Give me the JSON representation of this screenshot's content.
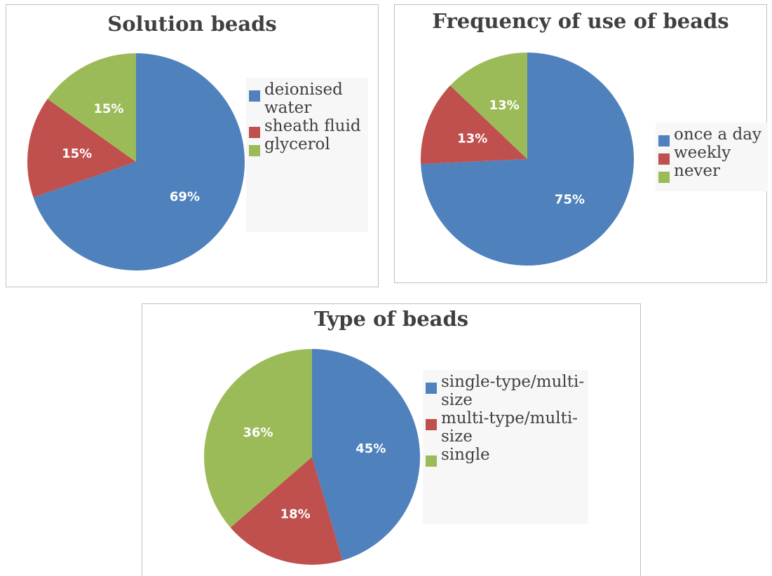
{
  "colors": {
    "blue": "#4f81bd",
    "red": "#c0504d",
    "green": "#9bbb59"
  },
  "chart_data": [
    {
      "type": "pie",
      "title": "Solution beads",
      "categories": [
        "deionised water",
        "sheath fluid",
        "glycerol"
      ],
      "values": [
        69,
        15,
        15
      ],
      "labels": [
        "69%",
        "15%",
        "15%"
      ],
      "legend": [
        "deionised water",
        "sheath fluid",
        "glycerol"
      ],
      "legend_position": "right"
    },
    {
      "type": "pie",
      "title": "Frequency of use of beads",
      "categories": [
        "once a day",
        "weekly",
        "never"
      ],
      "values": [
        75,
        13,
        13
      ],
      "labels": [
        "75%",
        "13%",
        "13%"
      ],
      "legend": [
        "once a day",
        "weekly",
        "never"
      ],
      "legend_position": "right"
    },
    {
      "type": "pie",
      "title": "Type of beads",
      "categories": [
        "single-type/multi-size",
        "multi-type/multi-size",
        "single"
      ],
      "values": [
        45,
        18,
        36
      ],
      "labels": [
        "45%",
        "18%",
        "36%"
      ],
      "legend": [
        "single-type/multi-size",
        "multi-type/multi-size",
        "single"
      ],
      "legend_position": "right"
    }
  ]
}
